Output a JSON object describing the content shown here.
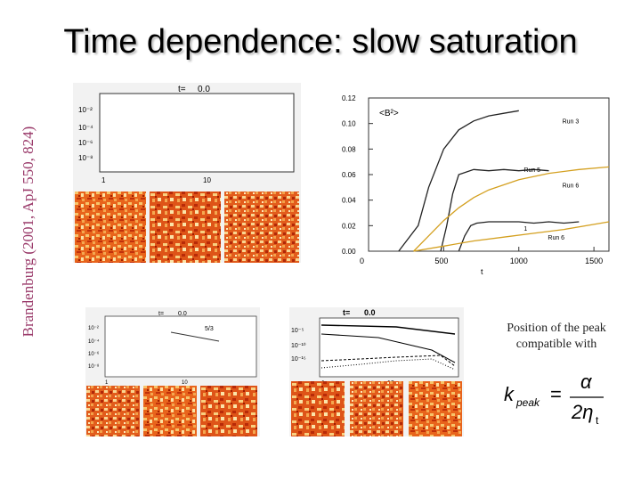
{
  "title": "Time dependence: slow saturation",
  "citation": "Brandenburg (2001, ApJ 550, 824)",
  "note": "Position of the peak compatible with",
  "formula": {
    "lhs": "k",
    "lhs_sub": "peak",
    "num": "α",
    "den": "2η",
    "den_sub": "t"
  },
  "spectrum1": {
    "time_label": "t=",
    "time_value": "0.0",
    "yticks": [
      "10⁻²",
      "10⁻⁴",
      "10⁻⁶",
      "10⁻⁸"
    ],
    "xticks": [
      "1",
      "10"
    ]
  },
  "spectrum2": {
    "time_label": "t=",
    "time_value": "0.0",
    "slope": "5/3",
    "yticks": [
      "10⁻²",
      "10⁻⁴",
      "10⁻⁶",
      "10⁻⁸"
    ],
    "xticks": [
      "1",
      "10"
    ]
  },
  "spectrum3": {
    "time_label": "t=",
    "time_value": "0.0",
    "yticks": [
      "10⁻⁵",
      "10⁻¹⁰",
      "10⁻¹⁵"
    ],
    "xticks": [
      "1",
      "10"
    ]
  },
  "colors": {
    "title_shadow": "#bbbbbb",
    "citation": "#9a3a6a",
    "pattern_a": "#e05a1a",
    "pattern_b": "#f7c46a",
    "curve": "#d4a020"
  },
  "chart_data": {
    "type": "line",
    "title": "",
    "legend_label": "<B²>",
    "xlabel": "t",
    "ylabel": "",
    "xlim": [
      0,
      1600
    ],
    "ylim": [
      0,
      0.12
    ],
    "xticks": [
      "0",
      "500",
      "1000",
      "1500"
    ],
    "yticks": [
      "0.00",
      "0.02",
      "0.04",
      "0.06",
      "0.08",
      "0.10",
      "0.12"
    ],
    "series": [
      {
        "name": "Run 3",
        "x": [
          200,
          330,
          400,
          500,
          600,
          700,
          800,
          900,
          1000
        ],
        "y": [
          0,
          0.02,
          0.05,
          0.08,
          0.095,
          0.102,
          0.106,
          0.108,
          0.11
        ]
      },
      {
        "name": "Run 5",
        "x": [
          480,
          520,
          560,
          600,
          700,
          800,
          900,
          1000,
          1100,
          1200
        ],
        "y": [
          0,
          0.02,
          0.045,
          0.06,
          0.064,
          0.063,
          0.064,
          0.063,
          0.064,
          0.063
        ]
      },
      {
        "name": "Run 6",
        "x": [
          300,
          400,
          500,
          600,
          700,
          800,
          1000,
          1200,
          1400,
          1600
        ],
        "y": [
          0,
          0.012,
          0.024,
          0.034,
          0.042,
          0.048,
          0.056,
          0.061,
          0.064,
          0.066
        ]
      },
      {
        "name": "1",
        "x": [
          600,
          640,
          680,
          720,
          800,
          900,
          1000,
          1100,
          1200,
          1300,
          1400
        ],
        "y": [
          0,
          0.012,
          0.02,
          0.022,
          0.023,
          0.023,
          0.023,
          0.022,
          0.023,
          0.022,
          0.023
        ]
      },
      {
        "name": "Run 6",
        "x": [
          300,
          500,
          700,
          900,
          1100,
          1300,
          1500,
          1600
        ],
        "y": [
          0,
          0.004,
          0.008,
          0.011,
          0.014,
          0.017,
          0.021,
          0.023
        ]
      }
    ],
    "annotations": [
      "Run 3",
      "Run 5",
      "Run 6",
      "1",
      "Run 6"
    ]
  }
}
